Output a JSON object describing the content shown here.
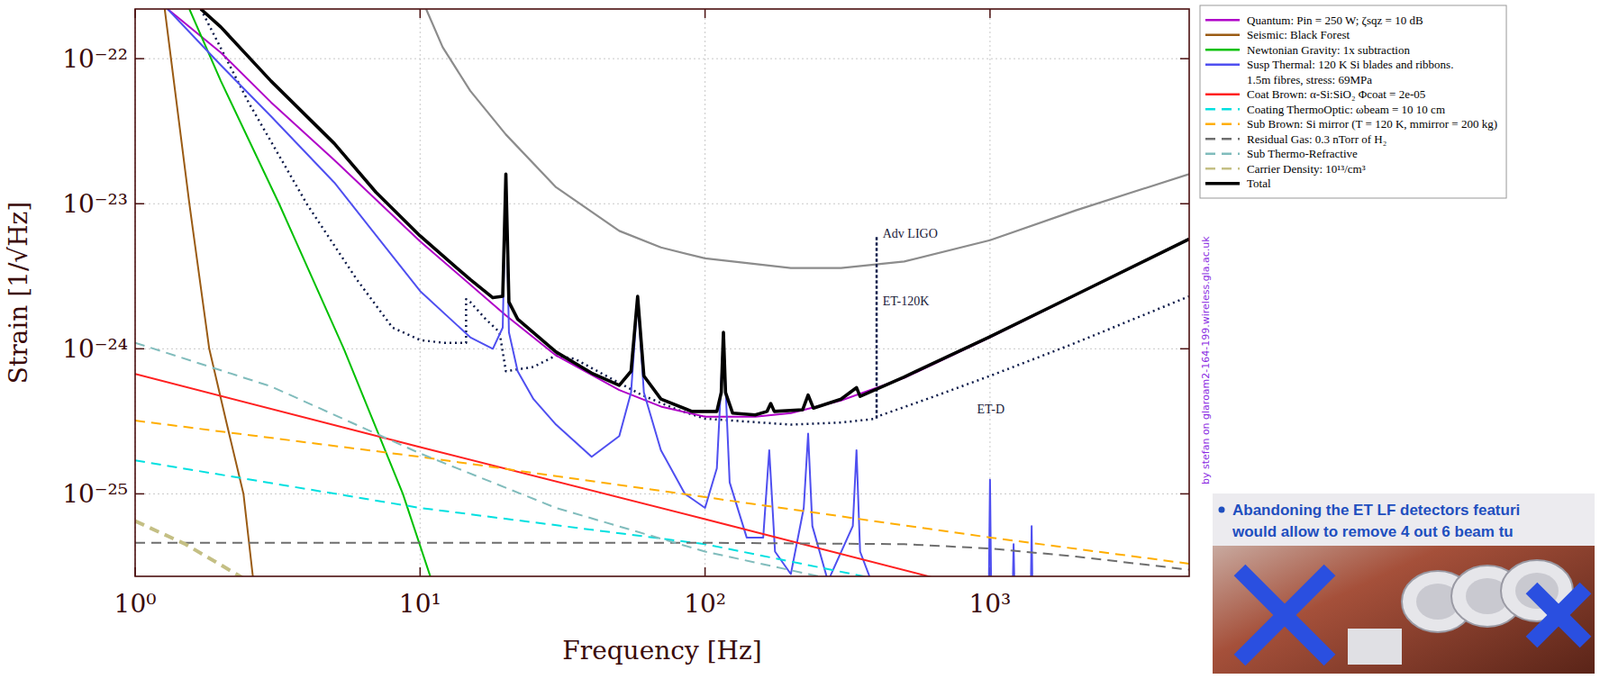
{
  "chart_data": {
    "type": "line",
    "log": true,
    "grid": true,
    "legend": "top-right",
    "x_label": "Frequency [Hz]",
    "y_label": "Strain [1/√Hz]",
    "xlim": [
      1,
      5000
    ],
    "ylim": [
      2.7e-26,
      2.2e-22
    ],
    "xticks": [
      {
        "value": 1,
        "label": "10⁰"
      },
      {
        "value": 10,
        "label": "10¹"
      },
      {
        "value": 100,
        "label": "10²"
      },
      {
        "value": 1000,
        "label": "10³"
      }
    ],
    "yticks": [
      {
        "value": 1e-25,
        "label": "10⁻²⁵"
      },
      {
        "value": 1e-24,
        "label": "10⁻²⁴"
      },
      {
        "value": 1e-23,
        "label": "10⁻²³"
      },
      {
        "value": 1e-22,
        "label": "10⁻²²"
      }
    ],
    "watermark": "by stefan on glaroam2-164-199.wireless.gla.ac.uk",
    "annotations": [
      {
        "text": "Adv LIGO",
        "x": 420,
        "y": 5.8e-24
      },
      {
        "text": "ET-120K",
        "x": 420,
        "y": 2e-24
      },
      {
        "text": "ET-D",
        "x": 900,
        "y": 3.6e-25
      }
    ],
    "reference_curves": [
      {
        "color": "#8c8c8c",
        "line_style": "solid",
        "x": [
          10.5,
          12,
          15,
          20,
          30,
          50,
          70,
          100,
          200,
          300,
          500,
          1000,
          2000,
          5000
        ],
        "values": [
          2.2e-22,
          1.2e-22,
          6e-23,
          3e-23,
          1.3e-23,
          6.5e-24,
          5e-24,
          4.2e-24,
          3.6e-24,
          3.6e-24,
          4e-24,
          5.6e-24,
          9e-24,
          1.6e-23
        ]
      },
      {
        "color": "#0d1b4a",
        "line_style": "dotted",
        "x": [
          1.7,
          2.5,
          4,
          6,
          8,
          10,
          12,
          14.5,
          14.5,
          15,
          17,
          19,
          20,
          25,
          30,
          35,
          45,
          60,
          80,
          100,
          200,
          300,
          400,
          400,
          400,
          600,
          1000,
          2000,
          5000
        ],
        "values": [
          2.2e-22,
          5e-23,
          1e-23,
          3e-24,
          1.4e-24,
          1.15e-24,
          1.1e-24,
          1.1e-24,
          2.2e-24,
          2.1e-24,
          1.6e-24,
          1.3e-24,
          7e-25,
          7.5e-25,
          9e-25,
          8.5e-25,
          6.5e-25,
          4.8e-25,
          3.8e-25,
          3.3e-25,
          3e-25,
          3.1e-25,
          3.3e-25,
          6e-24,
          3.4e-25,
          4.5e-25,
          6.5e-25,
          1.1e-24,
          2.3e-24
        ]
      }
    ],
    "series": [
      {
        "name": "Quantum: Pin = 250 W; ζsqz = 10 dB",
        "color": "#b000c8",
        "line_style": "solid",
        "x": [
          1.3,
          2,
          3,
          5,
          10,
          20,
          30,
          50,
          70,
          100,
          150,
          200,
          300,
          500,
          1000,
          2000,
          5000
        ],
        "values": [
          2.2e-22,
          1.1e-22,
          5e-23,
          2e-23,
          5.5e-24,
          1.7e-24,
          9e-25,
          5.2e-25,
          4e-25,
          3.4e-25,
          3.4e-25,
          3.6e-25,
          4.4e-25,
          6.3e-25,
          1.2e-24,
          2.35e-24,
          5.7e-24
        ]
      },
      {
        "name": "Seismic: Black Forest",
        "color": "#9a5b13",
        "line_style": "solid",
        "x": [
          1.27,
          1.55,
          1.82,
          2.1,
          2.4,
          2.6
        ],
        "values": [
          2.2e-22,
          1e-23,
          1e-24,
          3e-25,
          1e-25,
          2.5e-26
        ]
      },
      {
        "name": "Newtonian Gravity: 1x subtraction",
        "color": "#00c000",
        "line_style": "solid",
        "x": [
          1.55,
          2,
          3.2,
          5.4,
          8.7,
          11
        ],
        "values": [
          2.2e-22,
          7e-23,
          1e-23,
          1e-24,
          1e-25,
          2.5e-26
        ]
      },
      {
        "name": "Susp Thermal: 120 K Si blades and ribbons. 1.5m fibres, stress: 69MPa",
        "color": "#4f4ff0",
        "line_style": "solid",
        "x": [
          1.3,
          2,
          3,
          5,
          10,
          15,
          18,
          19.5,
          20,
          20.5,
          22,
          25,
          30,
          40,
          50,
          55,
          58,
          61,
          70,
          85,
          100,
          110,
          116,
          122,
          140,
          160,
          168,
          176,
          200,
          222,
          230,
          238,
          270,
          330,
          340,
          350,
          400,
          990,
          1000,
          1010,
          1200,
          1210,
          1220,
          1390,
          1400,
          1410,
          2000
        ],
        "values": [
          2.2e-22,
          9e-23,
          4e-23,
          1.4e-23,
          2.5e-24,
          1.2e-24,
          1e-24,
          1.4e-24,
          1.5e-23,
          1.3e-24,
          7e-25,
          4.5e-25,
          3e-25,
          1.8e-25,
          2.5e-25,
          5e-25,
          2.2e-24,
          5e-25,
          2e-25,
          1e-25,
          8e-26,
          1.5e-25,
          1.2e-24,
          1.2e-25,
          5e-26,
          5e-26,
          2e-25,
          4e-26,
          2.8e-26,
          8e-26,
          2.6e-25,
          6e-26,
          2.5e-26,
          6e-26,
          2e-25,
          4e-26,
          2e-26,
          2e-26,
          1.25e-25,
          2e-26,
          2e-26,
          4.5e-26,
          2e-26,
          2e-26,
          6e-26,
          2e-26,
          1.5e-26
        ]
      },
      {
        "name": "Coat Brown: α-Si:SiO₂ Φcoat = 2e-05",
        "color": "#ff2020",
        "line_style": "solid",
        "x": [
          1,
          10,
          100,
          1000
        ],
        "values": [
          6.7e-25,
          2.1e-25,
          6.7e-26,
          2.1e-26
        ]
      },
      {
        "name": "Coating ThermoOptic: ωbeam = 10 10 cm",
        "color": "#00e0e0",
        "line_style": "dashed",
        "x": [
          1,
          10,
          100,
          360,
          1000
        ],
        "values": [
          1.7e-25,
          8e-26,
          4.5e-26,
          2.7e-26,
          2e-26
        ]
      },
      {
        "name": "Sub Brown: Si mirror (T = 120 K, mmirror = 200 kg)",
        "color": "#ffae00",
        "line_style": "dashed",
        "x": [
          1,
          10,
          100,
          1000,
          5000
        ],
        "values": [
          3.2e-25,
          1.8e-25,
          9.5e-26,
          5e-26,
          3.3e-26
        ]
      },
      {
        "name": "Residual Gas: 0.3 nTorr of H₂",
        "color": "#6e6e6e",
        "line_style": "dashed",
        "x": [
          1,
          100,
          500,
          1000,
          2000,
          5000
        ],
        "values": [
          4.6e-26,
          4.6e-26,
          4.5e-26,
          4.2e-26,
          3.7e-26,
          3e-26
        ]
      },
      {
        "name": "Sub Thermo-Refractive",
        "color": "#80bcbc",
        "line_style": "dashed",
        "x": [
          1,
          3,
          10,
          30,
          100,
          300
        ],
        "values": [
          1.1e-24,
          5.5e-25,
          1.9e-25,
          8e-26,
          4e-26,
          2.5e-26
        ]
      },
      {
        "name": "Carrier Density: 10¹³/cm³",
        "color": "#c4bf84",
        "line_style": "dashed",
        "x": [
          1,
          1.5,
          2.5
        ],
        "values": [
          6.5e-26,
          4.5e-26,
          2.5e-26
        ]
      },
      {
        "name": "Total",
        "color": "#000000",
        "line_style": "solid",
        "x": [
          1.7,
          2,
          3,
          5,
          7,
          10,
          15,
          18,
          19.5,
          20,
          20.5,
          22,
          30,
          40,
          50,
          55,
          58,
          61,
          70,
          90,
          110,
          114,
          116,
          118,
          125,
          150,
          165,
          170,
          175,
          220,
          230,
          240,
          300,
          340,
          350,
          500,
          1000,
          2000,
          5000
        ],
        "values": [
          2.2e-22,
          1.65e-22,
          7e-23,
          2.6e-23,
          1.2e-23,
          6e-24,
          3e-24,
          2.25e-24,
          2.3e-24,
          1.6e-23,
          2.1e-24,
          1.6e-24,
          9.5e-25,
          6.8e-25,
          5.6e-25,
          7e-25,
          2.3e-24,
          6.5e-25,
          4.5e-25,
          3.7e-25,
          3.7e-25,
          5e-25,
          1.3e-24,
          5e-25,
          3.6e-25,
          3.5e-25,
          3.7e-25,
          4.2e-25,
          3.7e-25,
          3.8e-25,
          4.8e-25,
          3.9e-25,
          4.5e-25,
          5.4e-25,
          4.7e-25,
          6.4e-25,
          1.21e-24,
          2.36e-24,
          5.71e-24
        ]
      }
    ]
  },
  "overlay": {
    "lines": [
      "Abandoning the ET LF detectors featuri",
      "would allow to remove 4 out 6 beam tu"
    ]
  }
}
